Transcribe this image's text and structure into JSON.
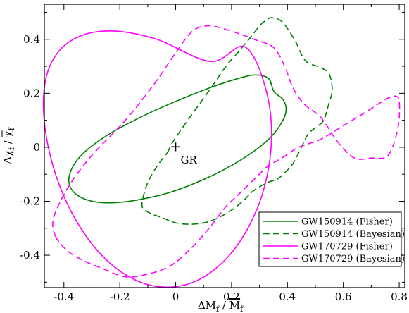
{
  "chart_data": {
    "type": "line",
    "xlabel_main": "ΔM",
    "xlabel_sub": "f",
    "xlabel_slash": " / ",
    "xlabel_main2": "M",
    "xlabel_sub2": "f",
    "ylabel_main": "Δχ",
    "ylabel_sub": "f",
    "ylabel_slash": " / ",
    "ylabel_main2": "χ",
    "ylabel_sub2": "f",
    "xlim": [
      -0.47,
      0.82
    ],
    "ylim": [
      -0.52,
      0.53
    ],
    "xticks": [
      {
        "v": -0.4,
        "label": "-0.4"
      },
      {
        "v": -0.2,
        "label": "-0.2"
      },
      {
        "v": 0,
        "label": "0"
      },
      {
        "v": 0.2,
        "label": "0.2"
      },
      {
        "v": 0.4,
        "label": "0.4"
      },
      {
        "v": 0.6,
        "label": "0.6"
      },
      {
        "v": 0.8,
        "label": "0.8"
      }
    ],
    "yticks": [
      {
        "v": -0.4,
        "label": "-0.4"
      },
      {
        "v": -0.2,
        "label": "-0.2"
      },
      {
        "v": 0,
        "label": "0"
      },
      {
        "v": 0.2,
        "label": "0.2"
      },
      {
        "v": 0.4,
        "label": "0.4"
      }
    ],
    "annotation": {
      "text": "GR",
      "x": 0,
      "y": 0,
      "marker": "+"
    },
    "legend_position": "bottom-right",
    "series": [
      {
        "name": "GW150914 (Fisher)",
        "color": "#008000",
        "dash": "solid",
        "x": [
          0.352,
          0.385,
          0.395,
          0.375,
          0.332,
          0.263,
          0.176,
          0.081,
          -0.017,
          -0.115,
          -0.201,
          -0.275,
          -0.33,
          -0.367,
          -0.382,
          -0.376,
          -0.351,
          -0.306,
          -0.241,
          -0.161,
          -0.069,
          0.028,
          0.124,
          0.211,
          0.281,
          0.332,
          0.352
        ],
        "y": [
          0.206,
          0.176,
          0.134,
          0.084,
          0.029,
          -0.027,
          -0.081,
          -0.128,
          -0.166,
          -0.191,
          -0.204,
          -0.204,
          -0.19,
          -0.164,
          -0.129,
          -0.089,
          -0.045,
          0.0,
          0.047,
          0.093,
          0.139,
          0.182,
          0.221,
          0.251,
          0.268,
          0.255,
          0.206
        ]
      },
      {
        "name": "GW150914 (Bayesian)",
        "color": "#008000",
        "dash": "dashed",
        "x": [
          -0.03,
          -0.01,
          0.05,
          0.12,
          0.18,
          0.23,
          0.27,
          0.305,
          0.33,
          0.345,
          0.375,
          0.4,
          0.43,
          0.465,
          0.52,
          0.55,
          0.56,
          0.545,
          0.53,
          0.51,
          0.475,
          0.45,
          0.42,
          0.385,
          0.36,
          0.33,
          0.28,
          0.24,
          0.19,
          0.12,
          0.06,
          0.0,
          -0.05,
          -0.09,
          -0.12,
          -0.11,
          -0.09,
          -0.06,
          -0.03
        ],
        "y": [
          -0.02,
          0.02,
          0.11,
          0.21,
          0.3,
          0.36,
          0.41,
          0.455,
          0.475,
          0.48,
          0.47,
          0.44,
          0.39,
          0.32,
          0.295,
          0.27,
          0.21,
          0.15,
          0.1,
          0.08,
          0.05,
          0.0,
          -0.06,
          -0.1,
          -0.12,
          -0.13,
          -0.16,
          -0.2,
          -0.24,
          -0.275,
          -0.285,
          -0.28,
          -0.26,
          -0.245,
          -0.22,
          -0.16,
          -0.11,
          -0.06,
          -0.02
        ]
      },
      {
        "name": "GW170729 (Fisher)",
        "color": "#ff00ff",
        "dash": "solid",
        "x": [
          0.248,
          0.324,
          0.342,
          0.3,
          0.203,
          0.07,
          -0.079,
          -0.223,
          -0.345,
          -0.432,
          -0.472,
          -0.457,
          -0.382,
          -0.251,
          -0.076,
          0.124,
          0.248
        ],
        "y": [
          0.372,
          0.21,
          0.007,
          -0.205,
          -0.387,
          -0.497,
          -0.514,
          -0.44,
          -0.291,
          -0.093,
          0.116,
          0.283,
          0.39,
          0.431,
          0.403,
          0.318,
          0.372
        ]
      },
      {
        "name": "GW170729 (Bayesian)",
        "color": "#ff00ff",
        "dash": "dashed",
        "x": [
          -0.43,
          -0.41,
          -0.38,
          -0.33,
          -0.26,
          -0.18,
          -0.1,
          -0.02,
          0.05,
          0.12,
          0.18,
          0.22,
          0.25,
          0.29,
          0.33,
          0.38,
          0.44,
          0.52,
          0.6,
          0.68,
          0.74,
          0.78,
          0.8,
          0.795,
          0.76,
          0.7,
          0.64,
          0.58,
          0.52,
          0.46,
          0.42,
          0.39,
          0.35,
          0.28,
          0.2,
          0.12,
          0.06,
          0.0,
          -0.08,
          -0.18,
          -0.3,
          -0.38,
          -0.43,
          -0.44,
          -0.43
        ],
        "y": [
          -0.33,
          -0.36,
          -0.39,
          -0.42,
          -0.45,
          -0.48,
          -0.47,
          -0.44,
          -0.38,
          -0.3,
          -0.22,
          -0.18,
          -0.15,
          -0.11,
          -0.07,
          -0.04,
          0.0,
          0.03,
          0.08,
          0.13,
          0.17,
          0.19,
          0.17,
          0.07,
          -0.03,
          -0.04,
          -0.04,
          0.02,
          0.11,
          0.16,
          0.22,
          0.3,
          0.37,
          0.4,
          0.43,
          0.45,
          0.43,
          0.35,
          0.23,
          0.1,
          -0.03,
          -0.14,
          -0.24,
          -0.29,
          -0.33
        ]
      }
    ]
  }
}
